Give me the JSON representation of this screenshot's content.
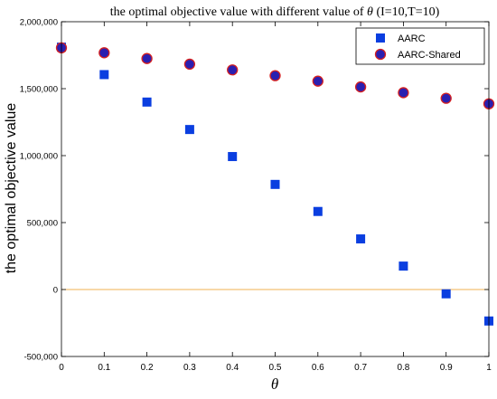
{
  "chart_data": {
    "type": "scatter",
    "title": {
      "prefix": "the optimal objective value with different value of ",
      "symbol": "θ",
      "suffix": " (I=10,T=10)"
    },
    "xlabel": "θ",
    "ylabel": "the optimal objective value",
    "xlim": [
      0,
      1
    ],
    "ylim": [
      -500000,
      2000000
    ],
    "x_ticks": [
      0,
      0.1,
      0.2,
      0.3,
      0.4,
      0.5,
      0.6,
      0.7,
      0.8,
      0.9,
      1
    ],
    "x_tick_labels": [
      "0",
      "0.1",
      "0.2",
      "0.3",
      "0.4",
      "0.5",
      "0.6",
      "0.7",
      "0.8",
      "0.9",
      "1"
    ],
    "y_ticks": [
      -500000,
      0,
      500000,
      1000000,
      1500000,
      2000000
    ],
    "y_tick_labels": [
      "-500,000",
      "0",
      "500,000",
      "1,000,000",
      "1,500,000",
      "2,000,000"
    ],
    "reference_line": {
      "y": 0,
      "color": "#f0b050"
    },
    "grid": false,
    "legend_position": "top-right",
    "x": [
      0,
      0.1,
      0.2,
      0.3,
      0.4,
      0.5,
      0.6,
      0.7,
      0.8,
      0.9,
      1
    ],
    "series": [
      {
        "name": "AARC",
        "marker": "square",
        "color": "#0a3ee0",
        "values": [
          1810000,
          1605000,
          1400000,
          1195000,
          993000,
          785000,
          583000,
          378000,
          175000,
          -32000,
          -235000
        ]
      },
      {
        "name": "AARC-Shared",
        "marker": "circle",
        "color": "#2a1fb0",
        "edge_color": "#d62020",
        "values": [
          1805000,
          1768000,
          1725000,
          1683000,
          1640000,
          1597000,
          1556000,
          1513000,
          1470000,
          1428000,
          1387000
        ]
      }
    ]
  }
}
